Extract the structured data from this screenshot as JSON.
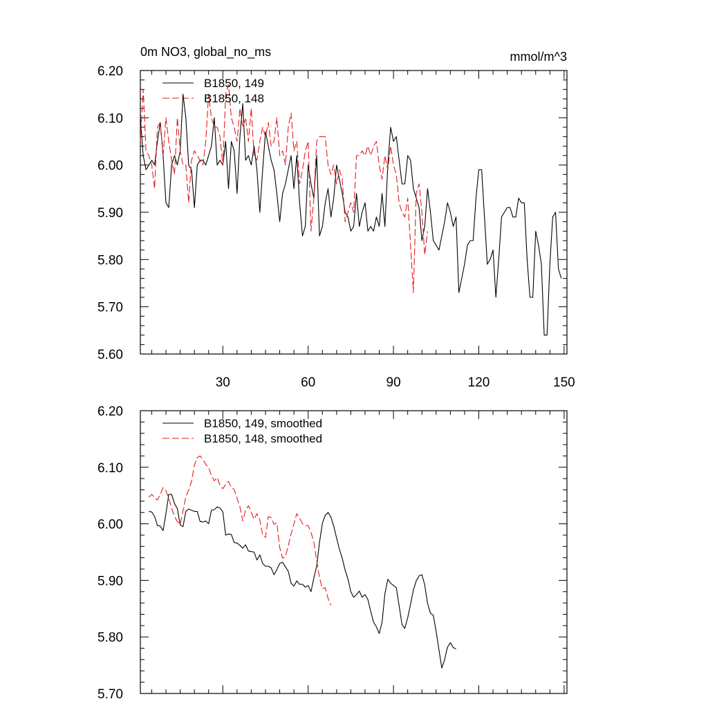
{
  "figure": {
    "title_left": "0m NO3, global_no_ms",
    "title_right": "mmol/m^3"
  },
  "chart_data": [
    {
      "type": "line",
      "xlim": [
        1,
        151
      ],
      "ylim": [
        5.6,
        6.2
      ],
      "xticks": [
        30,
        60,
        90,
        120,
        150
      ],
      "yticks": [
        5.6,
        5.7,
        5.8,
        5.9,
        6.0,
        6.1,
        6.2
      ],
      "ytick_labels": [
        "5.60",
        "5.70",
        "5.80",
        "5.90",
        "6.00",
        "6.10",
        "6.20"
      ],
      "legend": {
        "placement": "top-left"
      },
      "series": [
        {
          "name": "B1850, 149",
          "color": "#000000",
          "dash": "solid",
          "x_start": 1,
          "values": [
            6.1,
            6.02,
            5.99,
            6.0,
            6.01,
            6.0,
            6.05,
            6.09,
            6.02,
            5.92,
            5.91,
            6.0,
            6.02,
            6.0,
            6.03,
            6.15,
            6.1,
            6.0,
            5.99,
            5.91,
            6.0,
            6.01,
            6.01,
            6.0,
            6.02,
            6.04,
            6.1,
            6.0,
            6.01,
            6.0,
            6.05,
            5.95,
            6.05,
            6.03,
            5.94,
            6.06,
            6.13,
            6.01,
            6.02,
            6.0,
            6.04,
            5.99,
            5.9,
            5.99,
            6.07,
            6.04,
            6.01,
            5.99,
            5.94,
            5.88,
            5.94,
            5.96,
            5.99,
            6.02,
            5.95,
            6.02,
            5.92,
            5.85,
            5.87,
            6.0,
            5.96,
            5.93,
            6.02,
            5.85,
            5.87,
            5.92,
            5.95,
            5.89,
            5.93,
            6.0,
            5.97,
            5.94,
            5.9,
            5.89,
            5.86,
            5.87,
            5.94,
            5.87,
            5.9,
            5.92,
            5.86,
            5.87,
            5.86,
            5.89,
            5.87,
            5.94,
            5.87,
            6.0,
            6.08,
            6.05,
            6.06,
            6.01,
            5.96,
            5.96,
            6.02,
            6.01,
            5.95,
            5.93,
            5.91,
            5.84,
            5.87,
            5.95,
            5.9,
            5.84,
            5.83,
            5.82,
            5.85,
            5.88,
            5.92,
            5.9,
            5.87,
            5.89,
            5.73,
            5.76,
            5.79,
            5.83,
            5.84,
            5.84,
            5.93,
            5.99,
            5.99,
            5.89,
            5.79,
            5.8,
            5.82,
            5.72,
            5.8,
            5.89,
            5.9,
            5.91,
            5.91,
            5.89,
            5.89,
            5.93,
            5.92,
            5.92,
            5.8,
            5.72,
            5.72,
            5.86,
            5.83,
            5.79,
            5.64,
            5.64,
            5.79,
            5.89,
            5.9,
            5.78,
            5.76
          ]
        },
        {
          "name": "B1850, 148",
          "color": "#e31a1c",
          "dash": "dashed",
          "x_start": 1,
          "values": [
            6.05,
            6.16,
            6.03,
            6.02,
            6.0,
            5.95,
            6.08,
            6.09,
            6.02,
            6.1,
            6.05,
            6.01,
            5.98,
            6.1,
            6.03,
            6.0,
            6.0,
            5.92,
            6.01,
            6.03,
            6.02,
            6.01,
            6.0,
            6.05,
            6.15,
            6.1,
            6.08,
            6.08,
            6.06,
            6.0,
            6.15,
            6.17,
            6.1,
            6.08,
            6.05,
            6.12,
            6.08,
            6.1,
            6.05,
            6.12,
            6.02,
            6.01,
            6.05,
            6.08,
            6.06,
            6.09,
            6.04,
            6.05,
            6.1,
            6.02,
            6.03,
            6.0,
            6.08,
            6.11,
            6.03,
            6.05,
            5.96,
            5.99,
            6.03,
            6.05,
            5.86,
            5.93,
            6.05,
            6.06,
            6.06,
            6.06,
            6.0,
            5.98,
            6.0,
            5.96,
            5.99,
            5.97,
            5.88,
            5.9,
            5.92,
            5.9,
            6.02,
            6.02,
            6.03,
            6.02,
            6.04,
            6.02,
            6.04,
            6.05,
            6.0,
            5.97,
            6.02,
            5.99,
            6.04,
            6.0,
            5.98,
            5.92,
            5.9,
            5.89,
            5.93,
            5.83,
            5.73,
            5.94,
            5.96,
            5.9,
            5.81,
            5.86
          ]
        }
      ]
    },
    {
      "type": "line",
      "xlim": [
        1,
        151
      ],
      "ylim": [
        5.7,
        6.2
      ],
      "xticks": [
        30,
        60,
        90,
        120,
        150
      ],
      "yticks": [
        5.7,
        5.8,
        5.9,
        6.0,
        6.1,
        6.2
      ],
      "ytick_labels": [
        "5.70",
        "5.80",
        "5.90",
        "6.00",
        "6.10",
        "6.20"
      ],
      "legend": {
        "placement": "top-left"
      },
      "series": [
        {
          "name": "B1850, 149, smoothed",
          "color": "#000000",
          "dash": "solid",
          "x_start": 4,
          "values": [
            6.022,
            6.021,
            6.013,
            5.997,
            5.996,
            5.988,
            6.018,
            6.052,
            6.052,
            6.036,
            6.027,
            5.998,
            5.995,
            6.022,
            6.026,
            6.024,
            6.022,
            6.022,
            6.004,
            6.003,
            6.005,
            6.0,
            6.024,
            6.025,
            6.03,
            6.028,
            6.021,
            5.98,
            5.982,
            5.981,
            5.967,
            5.966,
            5.962,
            5.957,
            5.963,
            5.952,
            5.951,
            5.95,
            5.936,
            5.945,
            5.93,
            5.925,
            5.925,
            5.922,
            5.91,
            5.919,
            5.93,
            5.932,
            5.924,
            5.916,
            5.895,
            5.89,
            5.899,
            5.893,
            5.893,
            5.888,
            5.891,
            5.88,
            5.904,
            5.925,
            5.967,
            6.001,
            6.015,
            6.02,
            6.012,
            5.996,
            5.975,
            5.955,
            5.939,
            5.918,
            5.902,
            5.88,
            5.87,
            5.875,
            5.881,
            5.87,
            5.875,
            5.866,
            5.845,
            5.826,
            5.818,
            5.806,
            5.826,
            5.876,
            5.902,
            5.895,
            5.891,
            5.887,
            5.855,
            5.822,
            5.815,
            5.834,
            5.858,
            5.883,
            5.899,
            5.908,
            5.91,
            5.892,
            5.859,
            5.842,
            5.838,
            5.81,
            5.777,
            5.745,
            5.76,
            5.782,
            5.79,
            5.781,
            5.779
          ]
        },
        {
          "name": "B1850, 148, smoothed",
          "color": "#e31a1c",
          "dash": "dashed",
          "x_start": 4,
          "values": [
            6.047,
            6.052,
            6.046,
            6.042,
            6.052,
            6.064,
            6.059,
            6.045,
            6.028,
            6.013,
            6.004,
            5.999,
            6.023,
            6.048,
            6.06,
            6.075,
            6.104,
            6.117,
            6.12,
            6.114,
            6.105,
            6.1,
            6.085,
            6.076,
            6.082,
            6.068,
            6.062,
            6.07,
            6.075,
            6.064,
            6.061,
            6.045,
            6.03,
            6.005,
            6.024,
            6.032,
            6.02,
            6.008,
            6.018,
            6.007,
            5.98,
            5.976,
            6.013,
            6.011,
            5.999,
            6.002,
            5.958,
            5.939,
            5.942,
            5.961,
            5.982,
            6.0,
            6.018,
            6.01,
            6.0,
            5.997,
            5.997,
            5.985,
            5.968,
            5.935,
            5.905,
            5.885,
            5.887,
            5.868,
            5.856
          ]
        }
      ]
    }
  ]
}
